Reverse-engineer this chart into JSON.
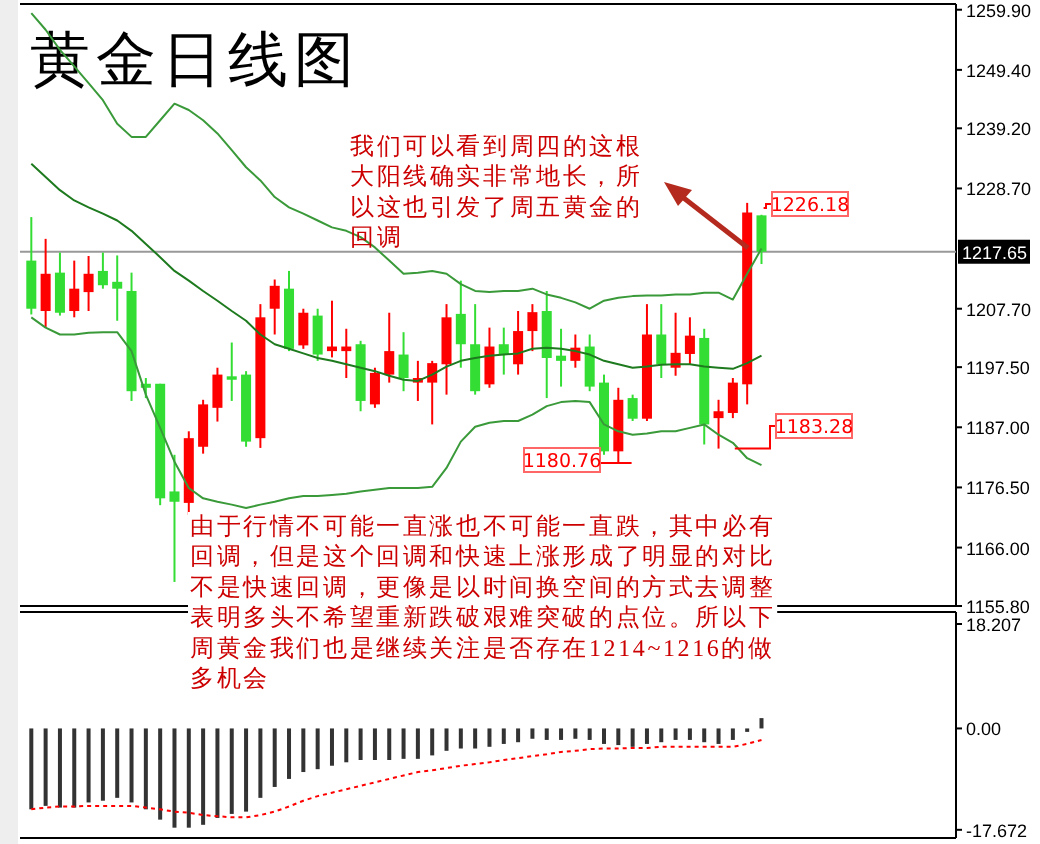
{
  "chart_data": [
    {
      "type": "candlestick",
      "title": "黄金日线图",
      "categories": [
        null,
        null,
        null,
        null,
        null,
        null,
        null,
        null,
        null,
        null,
        null,
        null,
        null,
        null,
        null,
        null,
        null,
        null,
        null,
        null,
        null,
        null,
        null,
        null,
        null,
        null,
        null,
        null,
        null,
        null,
        null,
        null,
        null,
        null,
        null,
        null,
        null,
        null,
        null,
        null,
        null,
        null,
        null,
        null,
        null,
        null,
        null,
        null,
        null,
        null,
        null,
        null
      ],
      "ohlc": [
        [
          1216.1,
          1223.7,
          1206.7,
          1207.7
        ],
        [
          1207.3,
          1219.9,
          1204.4,
          1213.8
        ],
        [
          1214.0,
          1217.5,
          1206.5,
          1207.0
        ],
        [
          1207.3,
          1216.1,
          1206.2,
          1211.2
        ],
        [
          1210.6,
          1216.9,
          1207.3,
          1213.8
        ],
        [
          1214.3,
          1217.5,
          1211.2,
          1211.8
        ],
        [
          1212.4,
          1217.0,
          1205.6,
          1211.2
        ],
        [
          1210.8,
          1214.0,
          1191.6,
          1193.3
        ],
        [
          1194.6,
          1195.6,
          1192.1,
          1193.9
        ],
        [
          1194.6,
          1194.6,
          1173.4,
          1174.6
        ],
        [
          1175.8,
          1182.2,
          1160.0,
          1174.0
        ],
        [
          1173.8,
          1186.3,
          1171.7,
          1185.1
        ],
        [
          1183.6,
          1191.8,
          1182.4,
          1191.0
        ],
        [
          1190.4,
          1197.4,
          1188.0,
          1196.2
        ],
        [
          1195.9,
          1201.8,
          1191.6,
          1195.3
        ],
        [
          1196.2,
          1196.8,
          1183.6,
          1184.5
        ],
        [
          1185.1,
          1208.5,
          1183.4,
          1206.2
        ],
        [
          1207.7,
          1212.8,
          1203.2,
          1211.7
        ],
        [
          1211.2,
          1214.3,
          1200.3,
          1200.7
        ],
        [
          1201.3,
          1207.7,
          1200.7,
          1207.0
        ],
        [
          1206.5,
          1207.7,
          1198.6,
          1199.7
        ],
        [
          1200.3,
          1209.1,
          1199.2,
          1201.1
        ],
        [
          1200.3,
          1204.2,
          1195.6,
          1201.1
        ],
        [
          1201.5,
          1202.1,
          1189.8,
          1191.6
        ],
        [
          1191.0,
          1197.4,
          1190.4,
          1196.5
        ],
        [
          1196.2,
          1207.0,
          1194.8,
          1200.3
        ],
        [
          1199.7,
          1203.6,
          1193.3,
          1195.6
        ],
        [
          1194.8,
          1198.6,
          1191.6,
          1195.6
        ],
        [
          1194.8,
          1198.6,
          1187.5,
          1198.2
        ],
        [
          1198.0,
          1208.5,
          1192.7,
          1206.2
        ],
        [
          1206.8,
          1212.6,
          1197.4,
          1201.5
        ],
        [
          1201.5,
          1208.5,
          1192.7,
          1193.3
        ],
        [
          1194.5,
          1204.4,
          1193.9,
          1201.1
        ],
        [
          1201.5,
          1204.4,
          1196.2,
          1199.7
        ],
        [
          1198.0,
          1207.3,
          1196.2,
          1203.8
        ],
        [
          1203.8,
          1208.5,
          1200.3,
          1207.1
        ],
        [
          1207.3,
          1210.8,
          1192.1,
          1199.1
        ],
        [
          1199.5,
          1204.2,
          1194.1,
          1198.6
        ],
        [
          1198.6,
          1203.2,
          1197.4,
          1200.9
        ],
        [
          1201.1,
          1203.2,
          1193.3,
          1194.1
        ],
        [
          1194.8,
          1196.2,
          1182.2,
          1182.8
        ],
        [
          1182.8,
          1193.9,
          1180.76,
          1191.8
        ],
        [
          1192.1,
          1192.7,
          1188.1,
          1188.5
        ],
        [
          1188.5,
          1208.5,
          1188.1,
          1203.2
        ],
        [
          1203.2,
          1208.5,
          1195.6,
          1198.0
        ],
        [
          1197.4,
          1207.0,
          1196.0,
          1200.0
        ],
        [
          1199.8,
          1206.2,
          1198.0,
          1203.0
        ],
        [
          1202.6,
          1204.2,
          1184.0,
          1187.5
        ],
        [
          1188.6,
          1191.8,
          1183.28,
          1189.8
        ],
        [
          1189.5,
          1195.6,
          1188.6,
          1194.8
        ],
        [
          1194.5,
          1226.18,
          1191.0,
          1224.5
        ],
        [
          1224.0,
          1224.1,
          1215.5,
          1217.65
        ]
      ],
      "colors": [
        "#33dd33",
        "#ff0000",
        "#33dd33",
        "#ff0000",
        "#ff0000",
        "#33dd33",
        "#33dd33",
        "#33dd33",
        "#33dd33",
        "#33dd33",
        "#33dd33",
        "#ff0000",
        "#ff0000",
        "#ff0000",
        "#33dd33",
        "#33dd33",
        "#ff0000",
        "#ff0000",
        "#33dd33",
        "#ff0000",
        "#33dd33",
        "#ff0000",
        "#ff0000",
        "#33dd33",
        "#ff0000",
        "#ff0000",
        "#33dd33",
        "#ff0000",
        "#ff0000",
        "#ff0000",
        "#33dd33",
        "#33dd33",
        "#ff0000",
        "#33dd33",
        "#ff0000",
        "#ff0000",
        "#33dd33",
        "#33dd33",
        "#ff0000",
        "#33dd33",
        "#33dd33",
        "#ff0000",
        "#33dd33",
        "#ff0000",
        "#33dd33",
        "#ff0000",
        "#ff0000",
        "#33dd33",
        "#ff0000",
        "#ff0000",
        "#ff0000",
        "#33dd33"
      ],
      "series": [
        {
          "type": "line",
          "color": "#3a9a3a",
          "values": [
            1259.3,
            1256.4,
            1252.9,
            1250.0,
            1247.1,
            1244.1,
            1240.0,
            1237.7,
            1237.7,
            1240.6,
            1243.5,
            1242.4,
            1240.6,
            1238.3,
            1235.4,
            1232.4,
            1230.1,
            1227.2,
            1225.4,
            1224.3,
            1223.1,
            1221.9,
            1221.3,
            1220.2,
            1218.4,
            1216.1,
            1213.8,
            1214.0,
            1214.3,
            1213.8,
            1212.0,
            1210.8,
            1210.6,
            1210.8,
            1210.8,
            1211.2,
            1210.2,
            1209.6,
            1208.8,
            1207.7,
            1209.1,
            1209.6,
            1209.9,
            1210.0,
            1210.0,
            1210.2,
            1210.2,
            1210.5,
            1210.5,
            1209.3,
            1213.8,
            1218.2
          ]
        },
        {
          "type": "line",
          "color": "#1e7a1e",
          "values": [
            1233.0,
            1230.7,
            1228.4,
            1226.6,
            1225.4,
            1224.3,
            1223.1,
            1221.3,
            1219.0,
            1216.7,
            1214.3,
            1212.6,
            1210.8,
            1209.1,
            1207.3,
            1205.6,
            1203.2,
            1201.5,
            1200.7,
            1199.9,
            1199.1,
            1198.6,
            1198.0,
            1197.4,
            1196.8,
            1196.0,
            1195.3,
            1195.1,
            1196.2,
            1197.6,
            1198.6,
            1199.1,
            1199.5,
            1199.7,
            1199.9,
            1200.7,
            1200.9,
            1200.7,
            1200.3,
            1199.7,
            1198.6,
            1198.0,
            1197.4,
            1197.6,
            1197.9,
            1198.0,
            1198.0,
            1197.6,
            1197.4,
            1197.2,
            1198.2,
            1199.5
          ]
        },
        {
          "type": "line",
          "color": "#3a9a3a",
          "values": [
            1206.2,
            1204.4,
            1203.2,
            1203.2,
            1203.5,
            1203.6,
            1203.6,
            1200.3,
            1192.7,
            1186.9,
            1181.0,
            1176.4,
            1174.6,
            1174.0,
            1173.5,
            1172.9,
            1173.5,
            1174.0,
            1174.6,
            1175.0,
            1175.0,
            1175.2,
            1175.4,
            1175.8,
            1176.1,
            1176.4,
            1176.4,
            1176.4,
            1176.6,
            1179.9,
            1184.5,
            1187.1,
            1187.8,
            1188.1,
            1188.1,
            1189.2,
            1190.7,
            1191.4,
            1191.6,
            1191.4,
            1187.5,
            1186.3,
            1185.7,
            1185.9,
            1186.3,
            1186.3,
            1186.9,
            1187.5,
            1185.7,
            1184.3,
            1181.6,
            1180.4
          ]
        }
      ],
      "ylim": [
        1155.8,
        1260.9
      ],
      "yticks": [
        {
          "value": 1259.9,
          "label": "1259.90"
        },
        {
          "value": 1249.4,
          "label": "1249.40"
        },
        {
          "value": 1239.2,
          "label": "1239.20"
        },
        {
          "value": 1228.7,
          "label": "1228.70"
        },
        {
          "value": 1207.7,
          "label": "1207.70"
        },
        {
          "value": 1197.5,
          "label": "1197.50"
        },
        {
          "value": 1187.0,
          "label": "1187.00"
        },
        {
          "value": 1176.5,
          "label": "1176.50"
        },
        {
          "value": 1166.0,
          "label": "1166.00"
        },
        {
          "value": 1155.8,
          "label": "1155.80"
        }
      ],
      "ref_lines": [
        {
          "axis": "y",
          "value": 1217.65,
          "label": "1217.65",
          "color": "#999999"
        }
      ],
      "annotations": [
        "我们可以看到周四的这根大阳线确实非常地长，所以这也引发了周五黄金的回调",
        "由于行情不可能一直涨也不可能一直跌，其中必有回调，但是这个回调和快速上涨形成了明显的对比不是快速回调，更像是以时间换空间的方式去调整表明多头不希望重新跌破艰难突破的点位。所以下周黄金我们也是继续关注是否存在1214~1216的做多机会",
        "1226.18",
        "1180.76",
        "1183.28"
      ],
      "tick_labels": "y"
    },
    {
      "type": "bar",
      "categories": [
        null,
        null,
        null,
        null,
        null,
        null,
        null,
        null,
        null,
        null,
        null,
        null,
        null,
        null,
        null,
        null,
        null,
        null,
        null,
        null,
        null,
        null,
        null,
        null,
        null,
        null,
        null,
        null,
        null,
        null,
        null,
        null,
        null,
        null,
        null,
        null,
        null,
        null,
        null,
        null,
        null,
        null,
        null,
        null,
        null,
        null,
        null,
        null,
        null,
        null,
        null,
        null
      ],
      "series": [
        {
          "type": "bar",
          "color": "#333333",
          "values": [
            -14.1,
            -13.5,
            -13.8,
            -13.8,
            -12.9,
            -12.6,
            -12.1,
            -12.9,
            -14.1,
            -15.9,
            -17.3,
            -17.3,
            -16.8,
            -15.6,
            -14.9,
            -14.5,
            -12.1,
            -10.2,
            -8.8,
            -7.6,
            -7.1,
            -6.5,
            -5.9,
            -5.5,
            -5.5,
            -5.5,
            -5.3,
            -5.3,
            -4.7,
            -3.9,
            -3.5,
            -3.5,
            -3.2,
            -2.7,
            -2.4,
            -1.8,
            -2.0,
            -2.0,
            -1.8,
            -2.0,
            -2.7,
            -2.9,
            -3.2,
            -2.7,
            -2.4,
            -2.0,
            -2.0,
            -2.4,
            -2.7,
            -2.0,
            -0.6,
            1.8
          ]
        },
        {
          "type": "line",
          "color": "#ff0000",
          "line_style": "dotted",
          "values": [
            -14.1,
            -13.8,
            -13.6,
            -13.6,
            -13.5,
            -13.5,
            -13.5,
            -13.5,
            -13.8,
            -14.1,
            -14.5,
            -14.7,
            -15.1,
            -15.3,
            -15.5,
            -15.5,
            -15.1,
            -14.5,
            -13.6,
            -12.6,
            -11.8,
            -11.2,
            -10.6,
            -10.0,
            -9.4,
            -8.8,
            -8.2,
            -7.6,
            -7.3,
            -6.9,
            -6.5,
            -6.2,
            -5.9,
            -5.5,
            -5.2,
            -4.8,
            -4.5,
            -4.1,
            -3.9,
            -3.6,
            -3.5,
            -3.5,
            -3.4,
            -3.4,
            -3.2,
            -3.2,
            -3.2,
            -3.2,
            -3.2,
            -3.2,
            -2.7,
            -2.0
          ]
        }
      ],
      "ylim": [
        -19.1,
        20.3
      ],
      "yticks": [
        18.207,
        {
          "value": 0,
          "label": "0.00"
        },
        -17.672
      ],
      "tick_labels": "y"
    }
  ]
}
